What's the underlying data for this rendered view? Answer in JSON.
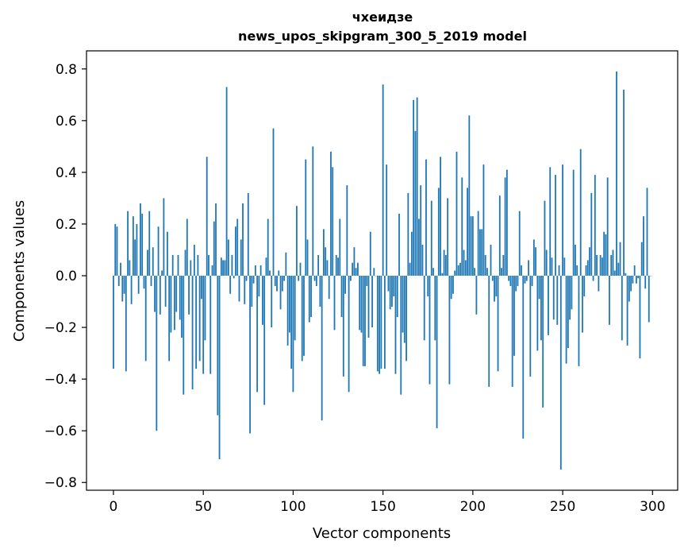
{
  "chart_data": {
    "type": "bar",
    "title": "чхеидзе",
    "subtitle": "news_upos_skipgram_300_5_2019 model",
    "xlabel": "Vector components",
    "ylabel": "Components values",
    "xlim": [
      -15,
      314
    ],
    "ylim": [
      -0.83,
      0.87
    ],
    "xticks": [
      0,
      50,
      100,
      150,
      200,
      250,
      300
    ],
    "yticks": [
      -0.8,
      -0.6,
      -0.4,
      -0.2,
      0.0,
      0.2,
      0.4,
      0.6,
      0.8
    ],
    "ytick_labels": [
      "−0.8",
      "−0.6",
      "−0.4",
      "−0.2",
      "0.0",
      "0.2",
      "0.4",
      "0.6",
      "0.8"
    ],
    "bar_color": "#1f77b4",
    "grid": false,
    "legend": "none",
    "values": [
      -0.36,
      0.2,
      0.19,
      -0.04,
      0.05,
      -0.1,
      -0.07,
      -0.37,
      0.25,
      0.06,
      -0.11,
      0.23,
      0.14,
      0.2,
      -0.07,
      0.28,
      0.24,
      -0.05,
      -0.33,
      0.1,
      0.25,
      -0.04,
      0.11,
      -0.14,
      -0.6,
      0.19,
      -0.15,
      0.02,
      0.3,
      -0.12,
      0.17,
      -0.33,
      -0.22,
      0.08,
      -0.21,
      -0.14,
      0.08,
      -0.17,
      -0.24,
      -0.46,
      0.1,
      0.22,
      -0.15,
      0.06,
      -0.44,
      0.12,
      -0.36,
      0.08,
      -0.33,
      -0.09,
      -0.38,
      -0.25,
      0.46,
      0.08,
      -0.38,
      0.04,
      0.21,
      0.28,
      -0.54,
      -0.71,
      0.07,
      0.06,
      0.06,
      0.73,
      0.14,
      -0.07,
      0.08,
      -0.01,
      0.19,
      0.22,
      -0.1,
      0.14,
      0.28,
      -0.11,
      -0.02,
      0.32,
      -0.61,
      -0.12,
      -0.03,
      0.04,
      -0.45,
      -0.08,
      0.04,
      -0.19,
      -0.5,
      0.07,
      0.22,
      0.02,
      -0.2,
      0.57,
      -0.04,
      -0.06,
      0.02,
      -0.13,
      -0.06,
      -0.02,
      0.09,
      -0.27,
      -0.22,
      -0.36,
      -0.45,
      -0.25,
      0.27,
      -0.02,
      0.05,
      -0.33,
      -0.31,
      0.45,
      0.14,
      -0.18,
      -0.16,
      0.5,
      -0.02,
      -0.04,
      0.08,
      -0.12,
      -0.56,
      0.18,
      0.11,
      0.06,
      -0.09,
      0.48,
      0.42,
      -0.21,
      0.08,
      0.07,
      0.22,
      -0.16,
      -0.39,
      -0.07,
      0.35,
      -0.45,
      -0.02,
      0.05,
      0.11,
      0.03,
      0.05,
      -0.21,
      -0.22,
      -0.35,
      -0.35,
      -0.04,
      -0.24,
      0.17,
      -0.2,
      0.03,
      0.0,
      -0.37,
      -0.38,
      -0.36,
      0.74,
      -0.36,
      0.43,
      -0.06,
      -0.13,
      -0.12,
      -0.08,
      -0.38,
      -0.16,
      0.24,
      -0.46,
      -0.22,
      -0.26,
      -0.33,
      0.32,
      0.05,
      0.17,
      0.68,
      0.56,
      0.69,
      0.22,
      0.35,
      0.12,
      -0.25,
      0.45,
      -0.08,
      -0.42,
      0.29,
      0.03,
      -0.25,
      -0.59,
      0.34,
      0.46,
      0.01,
      0.1,
      0.08,
      0.3,
      -0.42,
      -0.09,
      -0.07,
      0.02,
      0.48,
      0.04,
      0.05,
      0.38,
      0.1,
      0.06,
      0.34,
      0.62,
      0.23,
      0.23,
      0.03,
      -0.15,
      0.25,
      0.18,
      0.18,
      0.43,
      0.08,
      0.03,
      -0.43,
      0.12,
      -0.02,
      -0.1,
      -0.08,
      -0.37,
      0.31,
      0.03,
      0.08,
      0.38,
      0.41,
      -0.02,
      -0.04,
      -0.43,
      -0.31,
      -0.06,
      -0.04,
      0.25,
      0.04,
      -0.63,
      -0.03,
      -0.02,
      0.06,
      -0.39,
      -0.04,
      0.14,
      0.11,
      -0.29,
      -0.09,
      -0.25,
      -0.51,
      0.29,
      0.1,
      -0.23,
      0.42,
      0.07,
      -0.17,
      0.39,
      -0.19,
      0.04,
      -0.75,
      0.43,
      0.07,
      -0.34,
      -0.28,
      -0.17,
      -0.13,
      0.41,
      0.12,
      0.04,
      -0.35,
      0.49,
      -0.22,
      -0.08,
      0.04,
      0.06,
      0.11,
      0.32,
      -0.02,
      0.39,
      0.08,
      -0.06,
      0.08,
      0.07,
      0.17,
      0.16,
      0.38,
      -0.19,
      0.08,
      0.1,
      0.02,
      0.79,
      0.05,
      0.13,
      -0.25,
      0.72,
      0.01,
      -0.27,
      -0.1,
      -0.06,
      -0.03,
      0.04,
      -0.03,
      -0.01,
      -0.32,
      0.13,
      0.23,
      -0.05,
      0.34,
      -0.18,
      0.0
    ]
  }
}
